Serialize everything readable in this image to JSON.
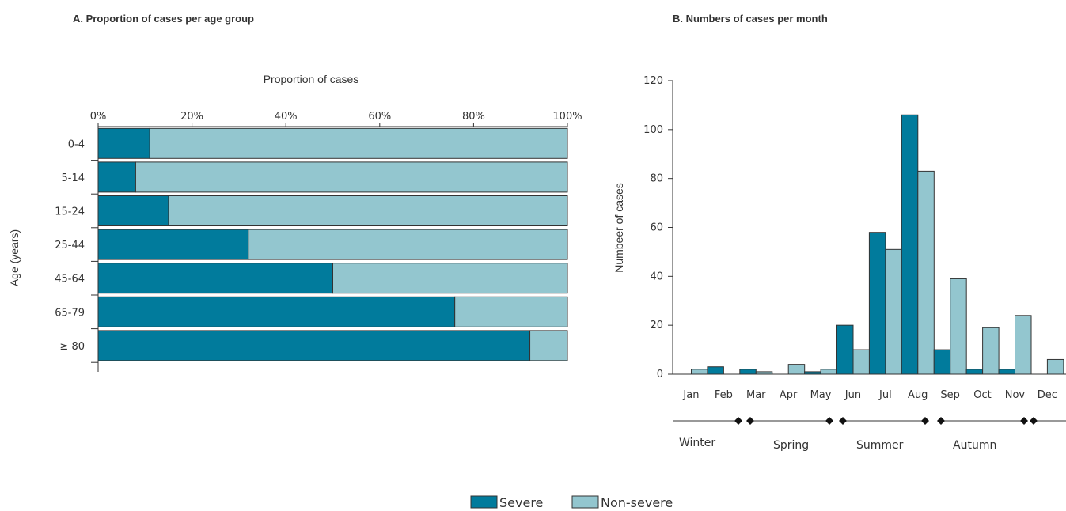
{
  "colors": {
    "severe": "#017b9c",
    "non_severe": "#93c6cf"
  },
  "legend": [
    {
      "label": "Severe",
      "color": "#017b9c"
    },
    {
      "label": "Non-severe",
      "color": "#93c6cf"
    }
  ],
  "chart_data": [
    {
      "type": "bar",
      "orientation": "horizontal",
      "stacked": true,
      "title": "A. Proportion of cases per age group",
      "xlabel": "Proportion of cases",
      "ylabel": "Age (years)",
      "xlim": [
        0,
        100
      ],
      "x_ticks": [
        "0%",
        "20%",
        "40%",
        "60%",
        "80%",
        "100%"
      ],
      "categories": [
        "0-4",
        "5-14",
        "15-24",
        "25-44",
        "45-64",
        "65-79",
        "≥ 80"
      ],
      "series": [
        {
          "name": "Severe",
          "values": [
            11,
            8,
            15,
            32,
            50,
            76,
            92
          ]
        },
        {
          "name": "Non-severe",
          "values": [
            89,
            92,
            85,
            68,
            50,
            24,
            8
          ]
        }
      ]
    },
    {
      "type": "bar",
      "title": "B. Numbers of cases per month",
      "xlabel": "",
      "ylabel": "Numbeer of cases",
      "ylim": [
        0,
        120
      ],
      "y_ticks": [
        0,
        20,
        40,
        60,
        80,
        100,
        120
      ],
      "categories": [
        "Jan",
        "Feb",
        "Mar",
        "Apr",
        "May",
        "Jun",
        "Jul",
        "Aug",
        "Sep",
        "Oct",
        "Nov",
        "Dec"
      ],
      "series": [
        {
          "name": "Severe",
          "values": [
            0,
            3,
            2,
            0,
            1,
            20,
            58,
            106,
            10,
            2,
            2,
            0
          ]
        },
        {
          "name": "Non-severe",
          "values": [
            2,
            0,
            1,
            4,
            2,
            10,
            51,
            83,
            39,
            19,
            24,
            6
          ]
        }
      ],
      "seasons": [
        "Winter",
        "Spring",
        "Summer",
        "Autumn"
      ]
    }
  ]
}
